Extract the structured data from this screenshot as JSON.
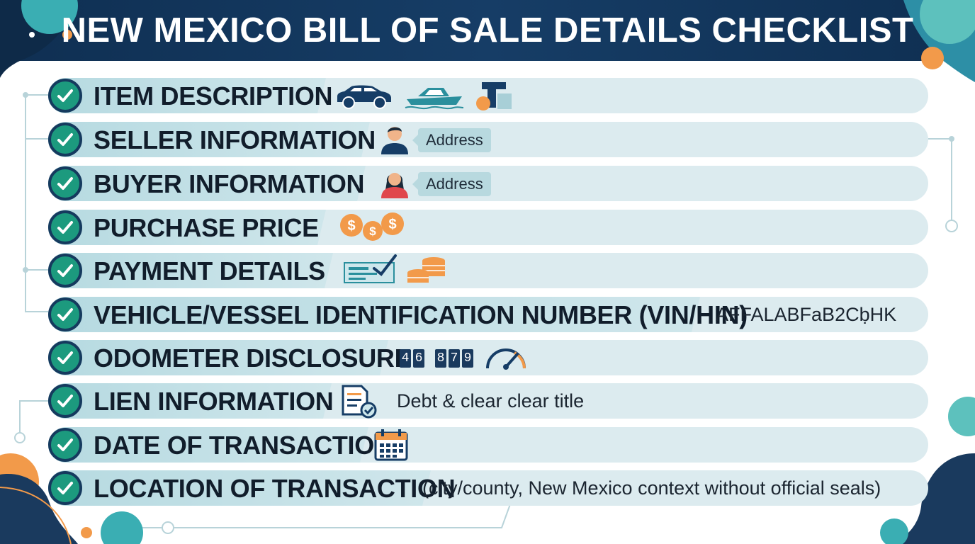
{
  "title": "NEW MEXICO BILL OF SALE DETAILS CHECKLIST",
  "colors": {
    "header_bg": "#163d66",
    "check_green": "#1c9a7e",
    "row_bg": "#dcebef",
    "accent_orange": "#f29a4a",
    "accent_teal": "#3aaeb3"
  },
  "rows": [
    {
      "label": "ITEM DESCRIPTION",
      "icons": [
        "car-icon",
        "boat-icon",
        "equipment-icon"
      ]
    },
    {
      "label": "SELLER INFORMATION",
      "icons": [
        "male-person-icon"
      ],
      "pill": "Address"
    },
    {
      "label": "BUYER INFORMATION",
      "icons": [
        "female-person-icon"
      ],
      "pill": "Address"
    },
    {
      "label": "PURCHASE PRICE",
      "icons": [
        "dollar-coins-icon"
      ]
    },
    {
      "label": "PAYMENT DETAILS",
      "icons": [
        "check-payment-icon",
        "coin-stack-icon"
      ]
    },
    {
      "label": "VEHICLE/VESSEL IDENTIFICATION NUMBER (VIN/HIN)",
      "value": "AFFALABFaB2CḅHK"
    },
    {
      "label": "ODOMETER DISCLOSURE",
      "odometer": [
        "4",
        "6",
        "8",
        "7",
        "9"
      ],
      "icons": [
        "speedometer-icon"
      ]
    },
    {
      "label": "LIEN INFORMATION",
      "icons": [
        "document-check-icon"
      ],
      "value": "Debt & clear clear title"
    },
    {
      "label": "DATE OF TRANSACTION",
      "icons": [
        "calendar-icon"
      ]
    },
    {
      "label": "LOCATION OF TRANSACTION",
      "value": "(city/county, New Mexico context without official seals)"
    }
  ]
}
